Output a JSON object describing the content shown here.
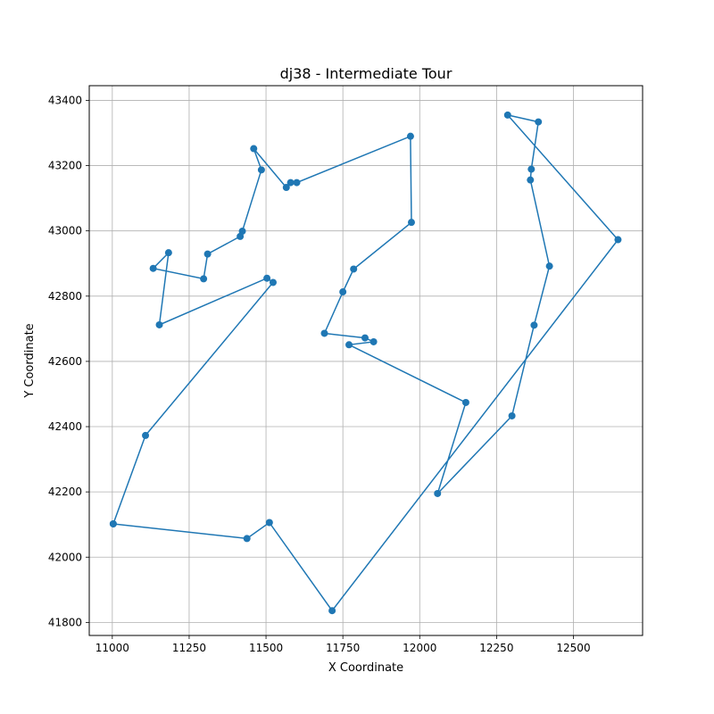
{
  "chart_data": {
    "type": "line",
    "title": "dj38 - Intermediate Tour",
    "xlabel": "X Coordinate",
    "ylabel": "Y Coordinate",
    "xlim": [
      10925,
      12725
    ],
    "ylim": [
      41760,
      43445
    ],
    "xticks": [
      11000,
      11250,
      11500,
      11750,
      12000,
      12250,
      12500
    ],
    "yticks": [
      41800,
      42000,
      42200,
      42400,
      42600,
      42800,
      43000,
      43200,
      43400
    ],
    "grid": true,
    "color": "#1f77b4",
    "marker": "circle",
    "series": [
      {
        "x": [
          11003,
          11108,
          11523,
          11503,
          11153,
          11183,
          11133,
          11297,
          11310,
          11416,
          11423,
          11485,
          11460,
          11566,
          11580,
          11600,
          11970,
          11973,
          11785,
          11750,
          11690,
          11822,
          11850,
          11770,
          12150,
          12058,
          12300,
          12372,
          12422,
          12360,
          12363,
          12386,
          12286,
          12645,
          11715,
          11511,
          11438,
          11003
        ],
        "y": [
          42102,
          42373,
          42842,
          42855,
          42712,
          42933,
          42885,
          42853,
          42929,
          42983,
          42999,
          43187,
          43252,
          43133,
          43148,
          43148,
          43290,
          43026,
          42883,
          42813,
          42686,
          42672,
          42660,
          42651,
          42474,
          42195,
          42433,
          42711,
          42892,
          43156,
          43189,
          43334,
          43355,
          42973,
          41836,
          42106,
          42057,
          42102
        ]
      }
    ]
  }
}
